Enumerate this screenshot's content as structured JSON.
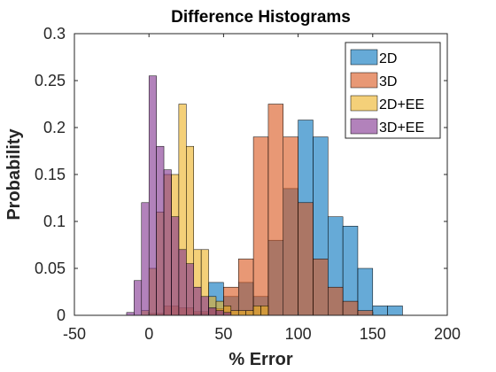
{
  "chart_data": {
    "type": "bar",
    "subtype": "overlaid-histogram",
    "title": "Difference Histograms",
    "xlabel": "% Error",
    "ylabel": "Probability",
    "xlim": [
      -50,
      200
    ],
    "ylim": [
      0,
      0.3
    ],
    "xticks": [
      -50,
      0,
      50,
      100,
      150,
      200
    ],
    "xtick_labels": [
      "-50",
      "0",
      "50",
      "100",
      "150",
      "200"
    ],
    "yticks": [
      0,
      0.05,
      0.1,
      0.15,
      0.2,
      0.25,
      0.3
    ],
    "ytick_labels": [
      "0",
      "0.05",
      "0.1",
      "0.15",
      "0.2",
      "0.25",
      "0.3"
    ],
    "grid": false,
    "box": true,
    "legend_location": "top-right",
    "bar_opacity": 0.6,
    "series": [
      {
        "name": "2D",
        "color": "#0072BD",
        "bin_width": 10,
        "bins": [
          {
            "x0": 30,
            "value": 0.002
          },
          {
            "x0": 40,
            "value": 0.035
          },
          {
            "x0": 50,
            "value": 0.02
          },
          {
            "x0": 60,
            "value": 0.035
          },
          {
            "x0": 70,
            "value": 0.02
          },
          {
            "x0": 80,
            "value": 0.08
          },
          {
            "x0": 90,
            "value": 0.135
          },
          {
            "x0": 100,
            "value": 0.208
          },
          {
            "x0": 110,
            "value": 0.19
          },
          {
            "x0": 120,
            "value": 0.105
          },
          {
            "x0": 130,
            "value": 0.095
          },
          {
            "x0": 140,
            "value": 0.05
          },
          {
            "x0": 150,
            "value": 0.01
          },
          {
            "x0": 160,
            "value": 0.01
          }
        ]
      },
      {
        "name": "3D",
        "color": "#D95319",
        "bin_width": 10,
        "bins": [
          {
            "x0": 0,
            "value": 0.002
          },
          {
            "x0": 10,
            "value": 0.01
          },
          {
            "x0": 20,
            "value": 0.008
          },
          {
            "x0": 30,
            "value": 0.004
          },
          {
            "x0": 40,
            "value": 0.007
          },
          {
            "x0": 50,
            "value": 0.03
          },
          {
            "x0": 60,
            "value": 0.06
          },
          {
            "x0": 70,
            "value": 0.19
          },
          {
            "x0": 80,
            "value": 0.225
          },
          {
            "x0": 90,
            "value": 0.19
          },
          {
            "x0": 100,
            "value": 0.12
          },
          {
            "x0": 110,
            "value": 0.06
          },
          {
            "x0": 120,
            "value": 0.03
          },
          {
            "x0": 130,
            "value": 0.015
          },
          {
            "x0": 140,
            "value": 0.005
          }
        ]
      },
      {
        "name": "2D+EE",
        "color": "#EDB120",
        "bin_width": 5,
        "bins": [
          {
            "x0": -5,
            "value": 0.005
          },
          {
            "x0": 0,
            "value": 0.05
          },
          {
            "x0": 5,
            "value": 0.11
          },
          {
            "x0": 10,
            "value": 0.15
          },
          {
            "x0": 15,
            "value": 0.15
          },
          {
            "x0": 20,
            "value": 0.225
          },
          {
            "x0": 25,
            "value": 0.18
          },
          {
            "x0": 30,
            "value": 0.07
          },
          {
            "x0": 35,
            "value": 0.07
          },
          {
            "x0": 40,
            "value": 0.02
          },
          {
            "x0": 45,
            "value": 0.015
          },
          {
            "x0": 50,
            "value": 0.01
          },
          {
            "x0": 55,
            "value": 0.005
          },
          {
            "x0": 60,
            "value": 0.005
          },
          {
            "x0": 65,
            "value": 0.005
          },
          {
            "x0": 70,
            "value": 0.01
          },
          {
            "x0": 75,
            "value": 0.01
          }
        ]
      },
      {
        "name": "3D+EE",
        "color": "#7E2F8E",
        "bin_width": 5,
        "bins": [
          {
            "x0": -15,
            "value": 0.003
          },
          {
            "x0": -10,
            "value": 0.037
          },
          {
            "x0": -5,
            "value": 0.12
          },
          {
            "x0": 0,
            "value": 0.255
          },
          {
            "x0": 5,
            "value": 0.18
          },
          {
            "x0": 10,
            "value": 0.155
          },
          {
            "x0": 15,
            "value": 0.105
          },
          {
            "x0": 20,
            "value": 0.07
          },
          {
            "x0": 25,
            "value": 0.055
          },
          {
            "x0": 30,
            "value": 0.03
          },
          {
            "x0": 35,
            "value": 0.02
          },
          {
            "x0": 40,
            "value": 0.008
          },
          {
            "x0": 45,
            "value": 0.005
          },
          {
            "x0": 50,
            "value": 0.003
          }
        ]
      }
    ]
  }
}
